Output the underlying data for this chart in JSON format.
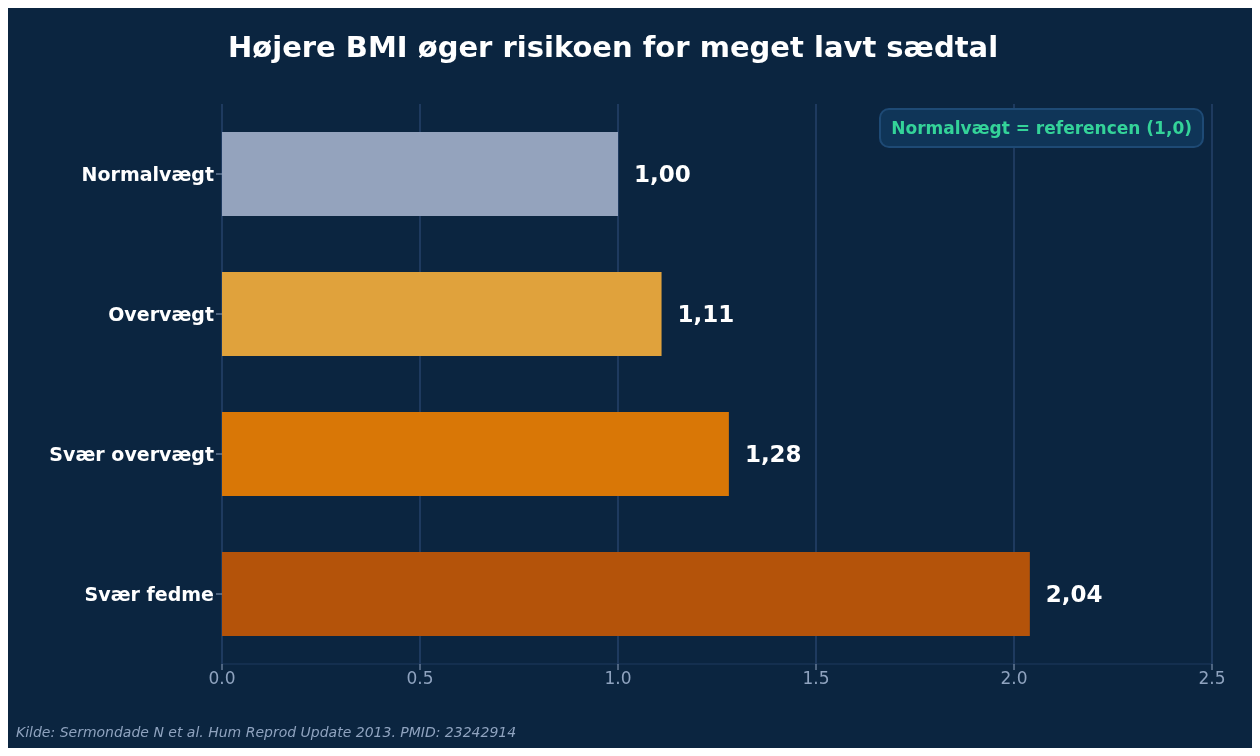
{
  "chart_data": {
    "type": "bar",
    "orientation": "horizontal",
    "title": "Højere BMI øger risikoen for meget lavt sædtal",
    "categories": [
      "Normalvægt",
      "Overvægt",
      "Svær overvægt",
      "Svær fedme"
    ],
    "values": [
      1.0,
      1.11,
      1.28,
      2.04
    ],
    "colors": [
      "#94a3bd",
      "#e0a23c",
      "#d97706",
      "#b4530a"
    ],
    "value_labels": [
      "1,00",
      "1,11",
      "1,28",
      "2,04"
    ],
    "xlim": [
      0,
      2.5
    ],
    "xticks": [
      {
        "value": 0,
        "label": "0.0"
      },
      {
        "value": 0.5,
        "label": "0.5"
      },
      {
        "value": 1,
        "label": "1.0"
      },
      {
        "value": 1.5,
        "label": "1.5"
      },
      {
        "value": 2,
        "label": "2.0"
      },
      {
        "value": 2.5,
        "label": "2.5"
      }
    ],
    "grid": "x",
    "legend": false,
    "annotations": [
      "Normalvægt = referencen (1,0)",
      "Kilde: Sermondade N et al. Hum Reprod Update 2013. PMID: 23242914"
    ]
  }
}
